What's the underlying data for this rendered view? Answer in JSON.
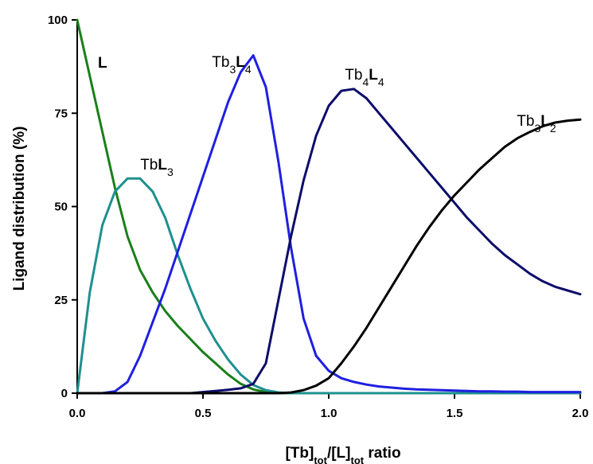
{
  "chart_data": {
    "type": "line",
    "xlabel": {
      "parts": [
        {
          "text": "[Tb]",
          "sub": false
        },
        {
          "text": "tot",
          "sub": true
        },
        {
          "text": "/[L]",
          "sub": false
        },
        {
          "text": "tot",
          "sub": true
        },
        {
          "text": " ratio",
          "sub": false
        }
      ]
    },
    "ylabel": "Ligand distribution (%)",
    "xlim": [
      0,
      2
    ],
    "ylim": [
      0,
      100
    ],
    "x_ticks": [
      "0.0",
      "0.5",
      "1.0",
      "1.5",
      "2.0"
    ],
    "y_ticks": [
      "0",
      "25",
      "50",
      "75",
      "100"
    ],
    "x": [
      0.0,
      0.05,
      0.1,
      0.15,
      0.2,
      0.25,
      0.3,
      0.35,
      0.4,
      0.45,
      0.5,
      0.55,
      0.6,
      0.65,
      0.7,
      0.75,
      0.8,
      0.85,
      0.9,
      0.95,
      1.0,
      1.05,
      1.1,
      1.15,
      1.2,
      1.25,
      1.3,
      1.35,
      1.4,
      1.45,
      1.5,
      1.55,
      1.6,
      1.65,
      1.7,
      1.75,
      1.8,
      1.85,
      1.9,
      1.95,
      2.0
    ],
    "series": [
      {
        "color": "#1a7f1a",
        "label_parts": [
          {
            "text": "L",
            "bold": true
          }
        ],
        "values": [
          100,
          85,
          70,
          55,
          42,
          33,
          27,
          22,
          18,
          14.5,
          11,
          8,
          5,
          2.5,
          1,
          0.3,
          0,
          0,
          0,
          0,
          0,
          0,
          0,
          0,
          0,
          0,
          0,
          0,
          0,
          0,
          0,
          0,
          0,
          0,
          0,
          0,
          0,
          0,
          0,
          0,
          0
        ]
      },
      {
        "color": "#1f8f8f",
        "label_parts": [
          {
            "text": "Tb",
            "bold": false
          },
          {
            "text": "L",
            "bold": true
          },
          {
            "text": "3",
            "sub": true
          }
        ],
        "values": [
          0,
          27,
          45,
          54,
          57.5,
          57.5,
          54,
          47,
          37,
          28,
          20,
          14,
          9,
          5,
          2.2,
          0.8,
          0.2,
          0,
          0,
          0,
          0,
          0,
          0,
          0,
          0,
          0,
          0,
          0,
          0,
          0,
          0,
          0,
          0,
          0,
          0,
          0,
          0,
          0,
          0,
          0,
          0
        ]
      },
      {
        "color": "#1f1fe0",
        "label_parts": [
          {
            "text": "Tb",
            "bold": false
          },
          {
            "text": "3",
            "sub": true
          },
          {
            "text": "L",
            "bold": true
          },
          {
            "text": "4",
            "sub": true
          }
        ],
        "values": [
          0,
          0,
          0,
          0.5,
          3,
          10,
          19,
          28,
          38,
          48,
          58,
          68,
          78,
          86,
          90.5,
          82,
          62,
          39,
          20,
          10,
          6,
          4,
          3,
          2.3,
          1.8,
          1.5,
          1.2,
          1.0,
          0.9,
          0.8,
          0.7,
          0.6,
          0.5,
          0.5,
          0.4,
          0.4,
          0.3,
          0.3,
          0.3,
          0.3,
          0.3
        ]
      },
      {
        "color": "#0d0d6b",
        "label_parts": [
          {
            "text": "Tb",
            "bold": false
          },
          {
            "text": "4",
            "sub": true
          },
          {
            "text": "L",
            "bold": true
          },
          {
            "text": "4",
            "sub": true
          }
        ],
        "values": [
          0,
          0,
          0,
          0,
          0,
          0,
          0,
          0,
          0,
          0,
          0.3,
          0.6,
          0.9,
          1.3,
          2.5,
          8,
          25,
          42,
          57,
          69,
          77,
          81,
          81.5,
          79,
          75,
          71,
          67,
          63,
          59,
          55,
          51,
          47,
          43.5,
          40,
          37,
          34.5,
          32,
          30,
          28.5,
          27.5,
          26.5
        ]
      },
      {
        "color": "#000000",
        "label_parts": [
          {
            "text": "Tb",
            "bold": false
          },
          {
            "text": "3",
            "sub": true
          },
          {
            "text": "L",
            "bold": true
          },
          {
            "text": "2",
            "sub": true
          }
        ],
        "values": [
          0,
          0,
          0,
          0,
          0,
          0,
          0,
          0,
          0,
          0,
          0,
          0,
          0,
          0,
          0,
          0,
          0,
          0.2,
          0.8,
          2,
          4,
          8,
          12.5,
          17.5,
          23,
          28.5,
          34,
          39.5,
          44.5,
          49,
          53,
          56.5,
          60,
          63,
          66,
          68.3,
          70,
          71.5,
          72.5,
          73,
          73.3
        ]
      }
    ]
  }
}
